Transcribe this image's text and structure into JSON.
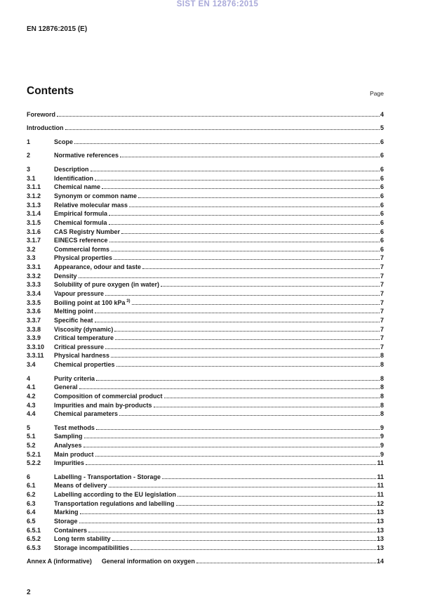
{
  "header": {
    "watermark": "SIST EN 12876:2015",
    "doc_ref": "EN 12876:2015 (E)"
  },
  "contents": {
    "heading": "Contents",
    "page_label": "Page"
  },
  "toc": {
    "entries": [
      {
        "title": "Foreword",
        "page": "4",
        "group": true
      },
      {
        "title": "Introduction",
        "page": "5",
        "group": true
      },
      {
        "num": "1",
        "title": "Scope",
        "page": "6",
        "group": true
      },
      {
        "num": "2",
        "title": "Normative references",
        "page": "6",
        "group": true
      },
      {
        "num": "3",
        "title": "Description",
        "page": "6",
        "group": true
      },
      {
        "num": "3.1",
        "title": "Identification",
        "page": "6"
      },
      {
        "num": "3.1.1",
        "title": "Chemical name",
        "page": "6"
      },
      {
        "num": "3.1.2",
        "title": "Synonym or common name",
        "page": "6"
      },
      {
        "num": "3.1.3",
        "title": "Relative molecular mass",
        "page": "6"
      },
      {
        "num": "3.1.4",
        "title": "Empirical formula",
        "page": "6"
      },
      {
        "num": "3.1.5",
        "title": "Chemical formula",
        "page": "6"
      },
      {
        "num": "3.1.6",
        "title": "CAS Registry Number",
        "page": "6"
      },
      {
        "num": "3.1.7",
        "title": "EINECS reference",
        "page": "6"
      },
      {
        "num": "3.2",
        "title": "Commercial forms",
        "page": "6"
      },
      {
        "num": "3.3",
        "title": "Physical properties",
        "page": "7"
      },
      {
        "num": "3.3.1",
        "title": "Appearance, odour and taste",
        "page": "7"
      },
      {
        "num": "3.3.2",
        "title": "Density",
        "page": "7"
      },
      {
        "num": "3.3.3",
        "title": "Solubility of pure oxygen (in water)",
        "page": "7"
      },
      {
        "num": "3.3.4",
        "title": "Vapour pressure",
        "page": "7"
      },
      {
        "num": "3.3.5",
        "title": "Boiling point at 100 kPa",
        "sup": "3)",
        "page": "7"
      },
      {
        "num": "3.3.6",
        "title": "Melting point",
        "page": "7"
      },
      {
        "num": "3.3.7",
        "title": "Specific heat",
        "page": "7"
      },
      {
        "num": "3.3.8",
        "title": "Viscosity (dynamic)",
        "page": "7"
      },
      {
        "num": "3.3.9",
        "title": "Critical temperature",
        "page": "7"
      },
      {
        "num": "3.3.10",
        "title": "Critical pressure",
        "page": "7"
      },
      {
        "num": "3.3.11",
        "title": "Physical hardness",
        "page": "8"
      },
      {
        "num": "3.4",
        "title": "Chemical properties",
        "page": "8"
      },
      {
        "num": "4",
        "title": "Purity criteria",
        "page": "8",
        "group": true
      },
      {
        "num": "4.1",
        "title": "General",
        "page": "8"
      },
      {
        "num": "4.2",
        "title": "Composition of commercial product",
        "page": "8"
      },
      {
        "num": "4.3",
        "title": "Impurities and main by-products",
        "page": "8"
      },
      {
        "num": "4.4",
        "title": "Chemical parameters",
        "page": "8"
      },
      {
        "num": "5",
        "title": "Test methods",
        "page": "9",
        "group": true
      },
      {
        "num": "5.1",
        "title": "Sampling",
        "page": "9"
      },
      {
        "num": "5.2",
        "title": "Analyses",
        "page": "9"
      },
      {
        "num": "5.2.1",
        "title": "Main product",
        "page": "9"
      },
      {
        "num": "5.2.2",
        "title": "Impurities",
        "page": "11"
      },
      {
        "num": "6",
        "title": "Labelling - Transportation - Storage",
        "page": "11",
        "group": true
      },
      {
        "num": "6.1",
        "title": "Means of delivery",
        "page": "11"
      },
      {
        "num": "6.2",
        "title": "Labelling according to the EU legislation",
        "page": "11"
      },
      {
        "num": "6.3",
        "title": "Transportation regulations and labelling",
        "page": "12"
      },
      {
        "num": "6.4",
        "title": "Marking",
        "page": "13"
      },
      {
        "num": "6.5",
        "title": "Storage",
        "page": "13"
      },
      {
        "num": "6.5.1",
        "title": "Containers",
        "page": "13"
      },
      {
        "num": "6.5.2",
        "title": "Long term stability",
        "page": "13"
      },
      {
        "num": "6.5.3",
        "title": "Storage incompatibilities",
        "page": "13"
      },
      {
        "prefix": "Annex A (informative)",
        "title": "General information on oxygen",
        "page": "14",
        "group": true
      }
    ]
  },
  "footer": {
    "page_number": "2"
  },
  "colors": {
    "watermark": "#a9a9d9",
    "text": "#1a1a1a"
  }
}
